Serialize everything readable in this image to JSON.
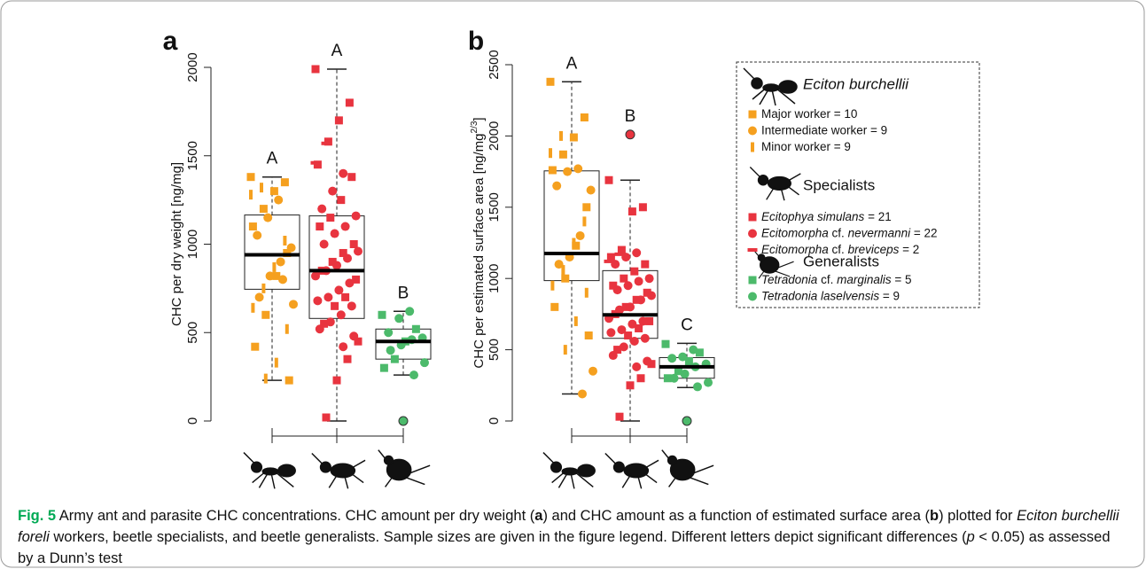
{
  "chart_data": [
    {
      "type": "box",
      "panel": "a",
      "ylabel": "CHC per dry weight [ng/mg]",
      "ylim": [
        0,
        2000
      ],
      "yticks": [
        0,
        500,
        1000,
        1500,
        2000
      ],
      "groups": [
        {
          "letter": "A",
          "color": "#f5a01f",
          "box": {
            "whislo": 230,
            "q1": 745,
            "med": 940,
            "q3": 1165,
            "whishi": 1380
          },
          "outliers": [],
          "points": [
            {
              "shape": "square",
              "values": [
                1380,
                1350,
                1300,
                1200,
                1100,
                950,
                820,
                600,
                420,
                230
              ]
            },
            {
              "shape": "circle",
              "values": [
                1250,
                1150,
                1050,
                980,
                900,
                820,
                700,
                660,
                800
              ]
            },
            {
              "shape": "vbar",
              "values": [
                1320,
                1280,
                1020,
                870,
                750,
                640,
                520,
                330,
                240
              ]
            }
          ]
        },
        {
          "letter": "A",
          "color": "#e8343f",
          "box": {
            "whislo": 0,
            "q1": 580,
            "med": 850,
            "q3": 1160,
            "whishi": 1990
          },
          "outliers": [],
          "points": [
            {
              "shape": "square",
              "values": [
                1990,
                1800,
                1700,
                1580,
                1450,
                1380,
                1250,
                1150,
                1100,
                1000,
                950,
                900,
                850,
                800,
                700,
                650,
                550,
                450,
                350,
                230,
                20
              ]
            },
            {
              "shape": "circle",
              "values": [
                1400,
                1300,
                1200,
                1160,
                1100,
                1060,
                1000,
                960,
                920,
                880,
                850,
                820,
                780,
                740,
                700,
                680,
                650,
                600,
                560,
                520,
                480,
                420
              ]
            },
            {
              "shape": "hbar",
              "values": [
                1570,
                1460
              ]
            }
          ]
        },
        {
          "letter": "B",
          "color": "#4cba6b",
          "box": {
            "whislo": 260,
            "q1": 350,
            "med": 450,
            "q3": 520,
            "whishi": 620
          },
          "outliers": [
            0
          ],
          "points": [
            {
              "shape": "square",
              "values": [
                600,
                520,
                450,
                350,
                300
              ]
            },
            {
              "shape": "circle",
              "values": [
                620,
                580,
                500,
                470,
                460,
                430,
                400,
                330,
                260
              ]
            }
          ]
        }
      ]
    },
    {
      "type": "box",
      "panel": "b",
      "ylabel": "CHC per estimated surface area [ng/mg",
      "ylabel_sup": "2/3",
      "ylabel_end": "]",
      "ylim": [
        0,
        2500
      ],
      "yticks": [
        0,
        500,
        1000,
        1500,
        2000,
        2500
      ],
      "groups": [
        {
          "letter": "A",
          "color": "#f5a01f",
          "box": {
            "whislo": 190,
            "q1": 985,
            "med": 1175,
            "q3": 1755,
            "whishi": 2380
          },
          "outliers": [],
          "points": [
            {
              "shape": "square",
              "values": [
                2380,
                2130,
                1990,
                1870,
                1760,
                1500,
                1230,
                1000,
                800,
                600
              ]
            },
            {
              "shape": "circle",
              "values": [
                1770,
                1750,
                1650,
                1620,
                1300,
                1150,
                1100,
                350,
                190
              ]
            },
            {
              "shape": "vbar",
              "values": [
                2000,
                1880,
                1400,
                1250,
                1060,
                950,
                900,
                700,
                500
              ]
            }
          ]
        },
        {
          "letter": "B",
          "color": "#e8343f",
          "box": {
            "whislo": 0,
            "q1": 580,
            "med": 745,
            "q3": 1055,
            "whishi": 1690
          },
          "outliers": [
            2010
          ],
          "points": [
            {
              "shape": "square",
              "values": [
                1690,
                1500,
                1470,
                1200,
                1150,
                1100,
                1050,
                1000,
                950,
                900,
                850,
                800,
                750,
                700,
                650,
                600,
                500,
                400,
                300,
                250,
                30
              ]
            },
            {
              "shape": "circle",
              "values": [
                1180,
                1150,
                1100,
                1000,
                980,
                950,
                920,
                880,
                850,
                800,
                780,
                720,
                700,
                680,
                640,
                620,
                580,
                560,
                520,
                460,
                420,
                380
              ]
            },
            {
              "shape": "hbar",
              "values": [
                1170,
                1120
              ]
            }
          ]
        },
        {
          "letter": "C",
          "color": "#4cba6b",
          "box": {
            "whislo": 235,
            "q1": 300,
            "med": 380,
            "q3": 445,
            "whishi": 545
          },
          "outliers": [
            0
          ],
          "points": [
            {
              "shape": "square",
              "values": [
                540,
                480,
                420,
                350,
                300
              ]
            },
            {
              "shape": "circle",
              "values": [
                500,
                450,
                440,
                400,
                380,
                330,
                300,
                270,
                240
              ]
            }
          ]
        }
      ]
    }
  ],
  "legend": {
    "groups": [
      {
        "title": "Eciton burchellii",
        "italic": true,
        "entries": [
          {
            "shape": "square",
            "color": "#f5a01f",
            "parts": [
              {
                "text": "Major worker = 10"
              }
            ]
          },
          {
            "shape": "circle",
            "color": "#f5a01f",
            "parts": [
              {
                "text": "Intermediate worker = 9"
              }
            ]
          },
          {
            "shape": "vbar",
            "color": "#f5a01f",
            "parts": [
              {
                "text": "Minor worker = 9"
              }
            ]
          }
        ]
      },
      {
        "title": "Specialists",
        "italic": false,
        "entries": [
          {
            "shape": "square",
            "color": "#e8343f",
            "parts": [
              {
                "text": "Ecitophya simulans",
                "italic": true
              },
              {
                "text": " = 21"
              }
            ]
          },
          {
            "shape": "circle",
            "color": "#e8343f",
            "parts": [
              {
                "text": "Ecitomorpha",
                "italic": true
              },
              {
                "text": " cf. "
              },
              {
                "text": "nevermanni",
                "italic": true
              },
              {
                "text": " = 22"
              }
            ]
          },
          {
            "shape": "hbar",
            "color": "#e8343f",
            "parts": [
              {
                "text": "Ecitomorpha",
                "italic": true
              },
              {
                "text": " cf. "
              },
              {
                "text": "breviceps",
                "italic": true
              },
              {
                "text": " = 2"
              }
            ]
          }
        ]
      },
      {
        "title": "Generalists",
        "italic": false,
        "entries": [
          {
            "shape": "square",
            "color": "#4cba6b",
            "parts": [
              {
                "text": "Tetradonia",
                "italic": true
              },
              {
                "text": " cf. "
              },
              {
                "text": "marginalis",
                "italic": true
              },
              {
                "text": " = 5"
              }
            ]
          },
          {
            "shape": "circle",
            "color": "#4cba6b",
            "parts": [
              {
                "text": "Tetradonia laselvensis",
                "italic": true
              },
              {
                "text": " = 9"
              }
            ]
          }
        ]
      }
    ]
  },
  "caption": {
    "parts": [
      {
        "text": "Fig. 5",
        "bold": true
      },
      {
        "text": " Army ant and parasite CHC concentrations. CHC amount per dry weight ("
      },
      {
        "text": "a",
        "bold": true
      },
      {
        "text": ") and CHC amount as a function of estimated surface area ("
      },
      {
        "text": "b",
        "bold": true
      },
      {
        "text": ") plotted for "
      },
      {
        "text": "Eciton burchellii foreli",
        "italic": true
      },
      {
        "text": " workers, beetle specialists, and beetle generalists. Sample sizes are given in the figure legend. Different letters depict significant differences ("
      },
      {
        "text": "p",
        "italic": true
      },
      {
        "text": " < 0.05) as assessed by a Dunn’s test"
      }
    ]
  }
}
